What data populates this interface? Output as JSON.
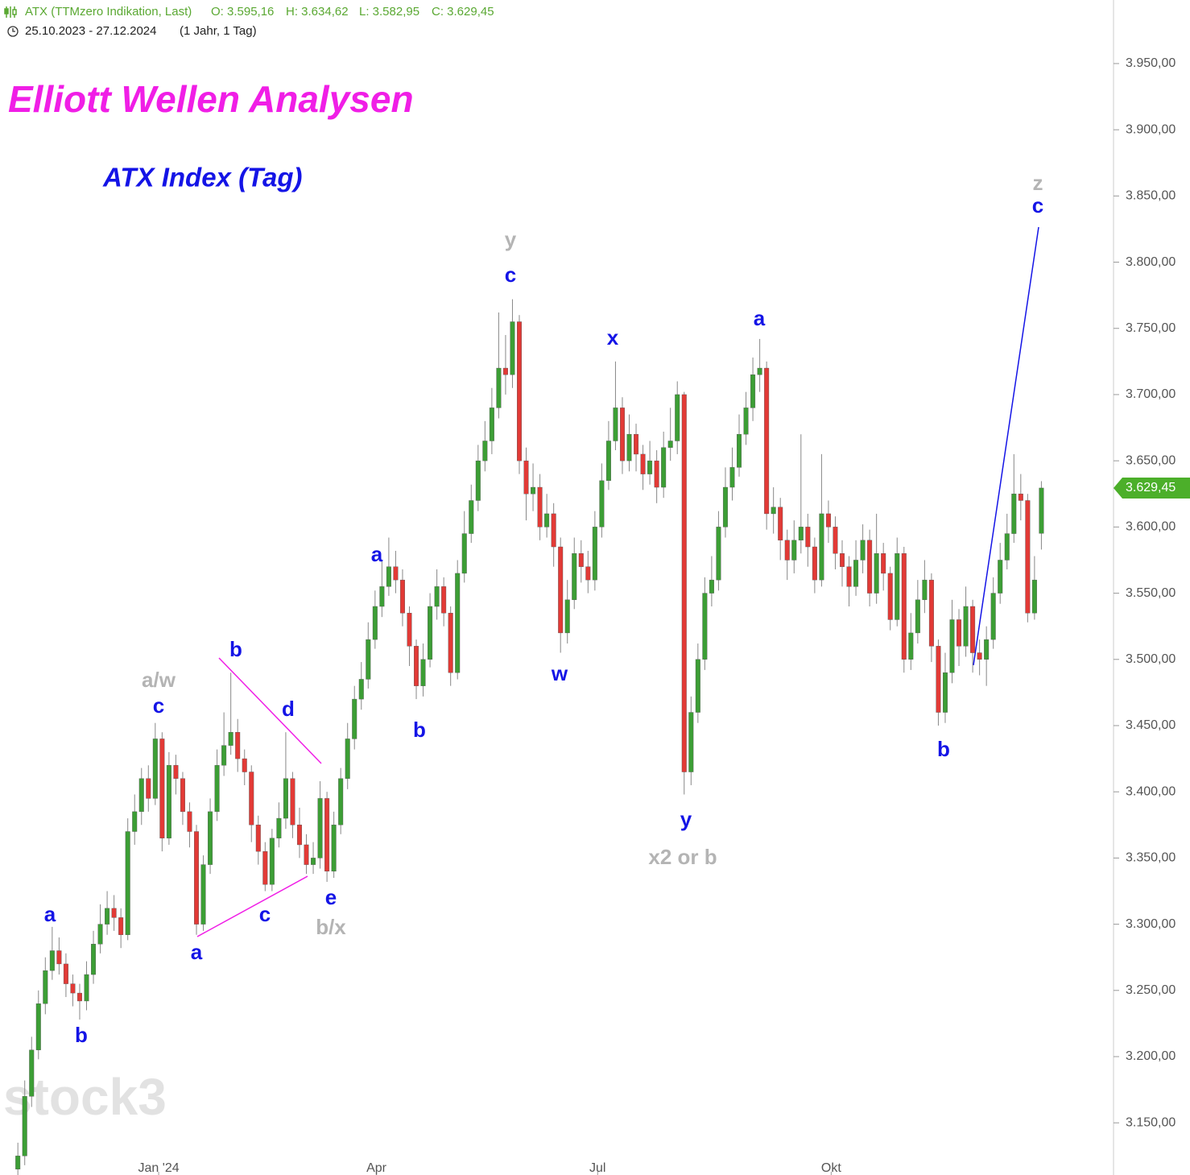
{
  "chart_data": {
    "type": "candlestick",
    "header": {
      "symbol": "ATX (TTMzero Indikation, Last)",
      "open": "O: 3.595,16",
      "high": "H: 3.634,62",
      "low": "L: 3.582,95",
      "close": "C: 3.629,45",
      "range": "25.10.2023 - 27.12.2024",
      "period": "(1 Jahr, 1 Tag)"
    },
    "title": "Elliott Wellen Analysen",
    "subtitle": "ATX Index (Tag)",
    "watermark": "stock3",
    "last_label": "3.629,45",
    "up_color": "#3c9e35",
    "down_color": "#e23a36",
    "x": [
      0,
      1,
      2,
      3,
      4,
      5,
      6,
      7,
      8,
      9,
      10,
      11,
      12,
      13,
      14,
      15,
      16,
      17,
      18,
      19,
      20,
      21,
      22,
      23,
      24,
      25,
      26,
      27,
      28,
      29,
      30,
      31,
      32,
      33,
      34,
      35,
      36,
      37,
      38,
      39,
      40,
      41,
      42,
      43,
      44,
      45,
      46,
      47,
      48,
      49,
      50,
      51,
      52,
      53,
      54,
      55,
      56,
      57,
      58,
      59,
      60,
      61,
      62,
      63,
      64,
      65,
      66,
      67,
      68,
      69,
      70,
      71,
      72,
      73,
      74,
      75,
      76,
      77,
      78,
      79,
      80,
      81,
      82,
      83,
      84,
      85,
      86,
      87,
      88,
      89,
      90,
      91,
      92,
      93,
      94,
      95,
      96,
      97,
      98,
      99,
      100,
      101,
      102,
      103,
      104,
      105,
      106,
      107,
      108,
      109,
      110,
      111,
      112,
      113,
      114,
      115,
      116,
      117,
      118,
      119,
      120,
      121,
      122,
      123,
      124,
      125,
      126,
      127,
      128,
      129,
      130,
      131,
      132,
      133,
      134,
      135,
      136,
      137,
      138,
      139,
      140,
      141,
      142,
      143,
      144,
      145,
      146,
      147,
      148,
      149
    ],
    "open": [
      3115,
      3125,
      3170,
      3205,
      3240,
      3265,
      3280,
      3270,
      3255,
      3248,
      3242,
      3262,
      3285,
      3300,
      3312,
      3305,
      3292,
      3370,
      3385,
      3410,
      3395,
      3440,
      3365,
      3420,
      3410,
      3385,
      3370,
      3300,
      3345,
      3385,
      3420,
      3435,
      3445,
      3425,
      3415,
      3375,
      3355,
      3330,
      3365,
      3380,
      3410,
      3375,
      3360,
      3345,
      3350,
      3395,
      3340,
      3375,
      3410,
      3440,
      3470,
      3485,
      3515,
      3540,
      3555,
      3570,
      3560,
      3535,
      3510,
      3480,
      3500,
      3540,
      3555,
      3535,
      3490,
      3565,
      3595,
      3620,
      3650,
      3665,
      3690,
      3720,
      3715,
      3755,
      3650,
      3625,
      3630,
      3600,
      3610,
      3585,
      3520,
      3545,
      3580,
      3570,
      3560,
      3600,
      3635,
      3665,
      3690,
      3650,
      3670,
      3655,
      3640,
      3650,
      3630,
      3660,
      3665,
      3700,
      3415,
      3460,
      3500,
      3550,
      3560,
      3600,
      3630,
      3645,
      3670,
      3690,
      3715,
      3720,
      3610,
      3615,
      3590,
      3575,
      3590,
      3600,
      3585,
      3560,
      3610,
      3600,
      3580,
      3570,
      3555,
      3575,
      3590,
      3550,
      3580,
      3565,
      3530,
      3580,
      3500,
      3520,
      3545,
      3560,
      3510,
      3460,
      3490,
      3530,
      3510,
      3540,
      3505,
      3500,
      3515,
      3550,
      3575,
      3595,
      3625,
      3620,
      3535,
      3595.16
    ],
    "high": [
      3135,
      3182,
      3215,
      3250,
      3275,
      3298,
      3290,
      3278,
      3262,
      3255,
      3272,
      3295,
      3315,
      3325,
      3322,
      3312,
      3380,
      3398,
      3418,
      3420,
      3452,
      3445,
      3430,
      3428,
      3415,
      3392,
      3375,
      3352,
      3395,
      3432,
      3460,
      3490,
      3455,
      3432,
      3420,
      3382,
      3362,
      3372,
      3392,
      3445,
      3415,
      3388,
      3368,
      3362,
      3408,
      3400,
      3385,
      3418,
      3452,
      3480,
      3498,
      3528,
      3552,
      3575,
      3592,
      3582,
      3568,
      3540,
      3515,
      3512,
      3550,
      3568,
      3562,
      3540,
      3575,
      3612,
      3632,
      3662,
      3680,
      3705,
      3762,
      3745,
      3772,
      3760,
      3660,
      3648,
      3640,
      3625,
      3618,
      3592,
      3560,
      3592,
      3590,
      3582,
      3612,
      3648,
      3680,
      3725,
      3698,
      3685,
      3678,
      3662,
      3665,
      3658,
      3672,
      3690,
      3710,
      3702,
      3472,
      3512,
      3562,
      3578,
      3612,
      3645,
      3660,
      3685,
      3702,
      3728,
      3742,
      3725,
      3630,
      3622,
      3598,
      3605,
      3670,
      3610,
      3592,
      3655,
      3620,
      3608,
      3590,
      3578,
      3590,
      3602,
      3598,
      3610,
      3588,
      3570,
      3592,
      3585,
      3535,
      3560,
      3575,
      3565,
      3515,
      3505,
      3545,
      3538,
      3555,
      3545,
      3515,
      3525,
      3562,
      3588,
      3610,
      3655,
      3640,
      3625,
      3578,
      3634.62
    ],
    "low": [
      3108,
      3118,
      3162,
      3198,
      3232,
      3258,
      3262,
      3245,
      3238,
      3228,
      3235,
      3255,
      3278,
      3292,
      3295,
      3282,
      3288,
      3360,
      3375,
      3385,
      3390,
      3355,
      3360,
      3398,
      3375,
      3358,
      3292,
      3295,
      3338,
      3378,
      3412,
      3428,
      3415,
      3405,
      3362,
      3345,
      3325,
      3325,
      3358,
      3372,
      3365,
      3350,
      3338,
      3338,
      3342,
      3332,
      3335,
      3368,
      3402,
      3432,
      3462,
      3478,
      3508,
      3532,
      3548,
      3550,
      3525,
      3495,
      3470,
      3472,
      3494,
      3530,
      3525,
      3480,
      3485,
      3558,
      3588,
      3612,
      3642,
      3655,
      3682,
      3700,
      3705,
      3640,
      3605,
      3612,
      3590,
      3592,
      3570,
      3505,
      3512,
      3538,
      3558,
      3550,
      3552,
      3592,
      3628,
      3658,
      3640,
      3642,
      3642,
      3628,
      3632,
      3618,
      3622,
      3650,
      3655,
      3398,
      3405,
      3452,
      3492,
      3540,
      3552,
      3592,
      3620,
      3638,
      3662,
      3680,
      3702,
      3598,
      3595,
      3575,
      3560,
      3565,
      3580,
      3570,
      3550,
      3555,
      3588,
      3568,
      3555,
      3540,
      3548,
      3565,
      3540,
      3542,
      3552,
      3522,
      3525,
      3490,
      3492,
      3512,
      3535,
      3498,
      3450,
      3452,
      3482,
      3495,
      3502,
      3490,
      3488,
      3480,
      3508,
      3542,
      3568,
      3588,
      3605,
      3528,
      3530,
      3582.95
    ],
    "close": [
      3125,
      3170,
      3205,
      3240,
      3265,
      3280,
      3270,
      3255,
      3248,
      3242,
      3262,
      3285,
      3300,
      3312,
      3305,
      3292,
      3370,
      3385,
      3410,
      3395,
      3440,
      3365,
      3420,
      3410,
      3385,
      3370,
      3300,
      3345,
      3385,
      3420,
      3435,
      3445,
      3425,
      3415,
      3375,
      3355,
      3330,
      3365,
      3380,
      3410,
      3375,
      3360,
      3345,
      3350,
      3395,
      3340,
      3375,
      3410,
      3440,
      3470,
      3485,
      3515,
      3540,
      3555,
      3570,
      3560,
      3535,
      3510,
      3480,
      3500,
      3540,
      3555,
      3535,
      3490,
      3565,
      3595,
      3620,
      3650,
      3665,
      3690,
      3720,
      3715,
      3755,
      3650,
      3625,
      3630,
      3600,
      3610,
      3585,
      3520,
      3545,
      3580,
      3570,
      3560,
      3600,
      3635,
      3665,
      3690,
      3650,
      3670,
      3655,
      3640,
      3650,
      3630,
      3660,
      3665,
      3700,
      3415,
      3460,
      3500,
      3550,
      3560,
      3600,
      3630,
      3645,
      3670,
      3690,
      3715,
      3720,
      3610,
      3615,
      3590,
      3575,
      3590,
      3600,
      3585,
      3560,
      3610,
      3600,
      3580,
      3570,
      3555,
      3575,
      3590,
      3550,
      3580,
      3565,
      3530,
      3580,
      3500,
      3520,
      3545,
      3560,
      3510,
      3460,
      3490,
      3530,
      3510,
      3540,
      3505,
      3500,
      3515,
      3550,
      3575,
      3595,
      3625,
      3620,
      3535,
      3560,
      3629.45
    ],
    "xlim": [
      -2.6,
      159.5
    ],
    "xticks": [
      {
        "value": 20.5,
        "label": "Jan '24"
      },
      {
        "value": 52.2,
        "label": "Apr"
      },
      {
        "value": 84.4,
        "label": "Jul"
      },
      {
        "value": 118.4,
        "label": "Okt"
      }
    ],
    "ylim": [
      3110.6,
      3998
    ],
    "yticks": [
      {
        "value": 3150,
        "label": "3.150,00"
      },
      {
        "value": 3200,
        "label": "3.200,00"
      },
      {
        "value": 3250,
        "label": "3.250,00"
      },
      {
        "value": 3300,
        "label": "3.300,00"
      },
      {
        "value": 3350,
        "label": "3.350,00"
      },
      {
        "value": 3400,
        "label": "3.400,00"
      },
      {
        "value": 3450,
        "label": "3.450,00"
      },
      {
        "value": 3500,
        "label": "3.500,00"
      },
      {
        "value": 3550,
        "label": "3.550,00"
      },
      {
        "value": 3600,
        "label": "3.600,00"
      },
      {
        "value": 3650,
        "label": "3.650,00"
      },
      {
        "value": 3700,
        "label": "3.700,00"
      },
      {
        "value": 3750,
        "label": "3.750,00"
      },
      {
        "value": 3800,
        "label": "3.800,00"
      },
      {
        "value": 3850,
        "label": "3.850,00"
      },
      {
        "value": 3900,
        "label": "3.900,00"
      },
      {
        "value": 3950,
        "label": "3.950,00"
      }
    ],
    "annotations": [
      {
        "text": "a",
        "color": "#1414e6"
      },
      {
        "text": "b",
        "color": "#1414e6"
      },
      {
        "text": "c",
        "color": "#1414e6"
      },
      {
        "text": "a/w",
        "color": "#b4b4b4"
      },
      {
        "text": "b",
        "color": "#1414e6"
      },
      {
        "text": "a",
        "color": "#1414e6"
      },
      {
        "text": "c",
        "color": "#1414e6"
      },
      {
        "text": "d",
        "color": "#1414e6"
      },
      {
        "text": "e",
        "color": "#1414e6"
      },
      {
        "text": "b/x",
        "color": "#b4b4b4"
      },
      {
        "text": "a",
        "color": "#1414e6"
      },
      {
        "text": "b",
        "color": "#1414e6"
      },
      {
        "text": "y",
        "color": "#b4b4b4"
      },
      {
        "text": "c",
        "color": "#1414e6"
      },
      {
        "text": "w",
        "color": "#1414e6"
      },
      {
        "text": "x",
        "color": "#1414e6"
      },
      {
        "text": "y",
        "color": "#1414e6"
      },
      {
        "text": "x2 or b",
        "color": "#b4b4b4"
      },
      {
        "text": "a",
        "color": "#1414e6"
      },
      {
        "text": "b",
        "color": "#1414e6"
      },
      {
        "text": "z",
        "color": "#b4b4b4"
      },
      {
        "text": "c",
        "color": "#1414e6"
      }
    ]
  }
}
